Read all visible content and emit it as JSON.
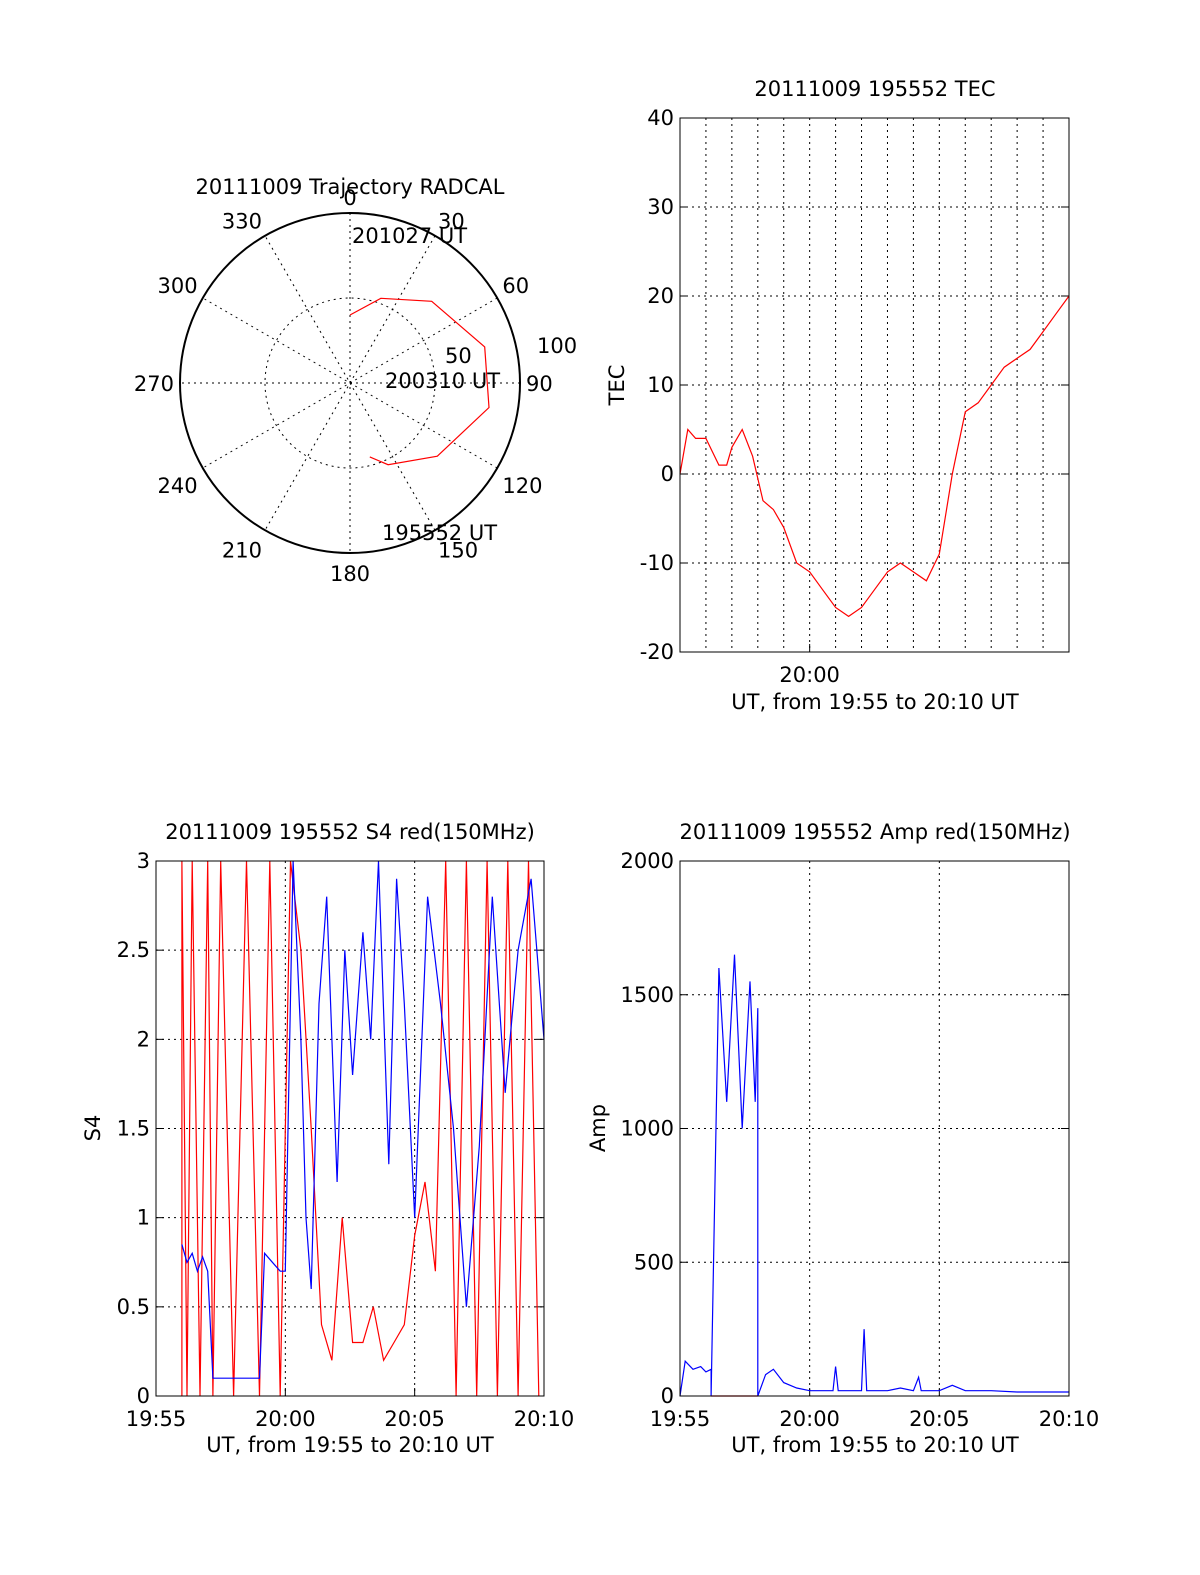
{
  "colors": {
    "red": "#ff0000",
    "blue": "#0000ff",
    "black": "#000000"
  },
  "chart_data": [
    {
      "type": "polar-trajectory",
      "title": "20111009 Trajectory RADCAL",
      "azimuth_labels": [
        "0",
        "30",
        "60",
        "90",
        "120",
        "150",
        "180",
        "210",
        "240",
        "270",
        "300",
        "330"
      ],
      "elevation_labels": [
        "50",
        "100"
      ],
      "annotations": [
        {
          "text": "201027 UT",
          "az": 0,
          "el": 40
        },
        {
          "text": "200310 UT",
          "az": 90,
          "el": 85
        },
        {
          "text": "195552 UT",
          "az": 165,
          "el": 45
        }
      ],
      "trajectory": [
        {
          "az": 0,
          "el": 40
        },
        {
          "az": 20,
          "el": 53
        },
        {
          "az": 45,
          "el": 68
        },
        {
          "az": 75,
          "el": 82
        },
        {
          "az": 100,
          "el": 83
        },
        {
          "az": 130,
          "el": 67
        },
        {
          "az": 155,
          "el": 53
        },
        {
          "az": 165,
          "el": 45
        }
      ]
    },
    {
      "type": "line",
      "title": "20111009 195552 TEC",
      "xlabel": "UT, from 19:55 to 20:10 UT",
      "ylabel": "TEC",
      "xlim": [
        0,
        15
      ],
      "ylim": [
        -20,
        40
      ],
      "yticks": [
        -20,
        -10,
        0,
        10,
        20,
        30,
        40
      ],
      "xticks": [
        {
          "value": 5,
          "label": "20:00"
        }
      ],
      "x_grid_minutes": [
        0,
        1,
        2,
        3,
        4,
        5,
        6,
        7,
        8,
        9,
        10,
        11,
        12,
        13,
        14,
        15
      ],
      "series": [
        {
          "color": "#ff0000",
          "x": [
            0.0,
            0.3,
            0.6,
            1.0,
            1.5,
            1.8,
            2.0,
            2.4,
            2.8,
            3.2,
            3.6,
            4.0,
            4.5,
            5.0,
            5.5,
            6.0,
            6.5,
            7.0,
            7.5,
            8.0,
            8.5,
            9.0,
            9.5,
            10.0,
            10.5,
            11.0,
            11.5,
            12.0,
            12.5,
            13.0,
            13.5,
            14.0,
            14.5,
            15.0
          ],
          "y": [
            0,
            5,
            4,
            4,
            1,
            1,
            3,
            5,
            2,
            -3,
            -4,
            -6,
            -10,
            -11,
            -13,
            -15,
            -16,
            -15,
            -13,
            -11,
            -10,
            -11,
            -12,
            -9,
            0,
            7,
            8,
            10,
            12,
            13,
            14,
            16,
            18,
            20
          ]
        }
      ]
    },
    {
      "type": "line",
      "title": "20111009 195552 S4 red(150MHz)",
      "xlabel": "UT, from 19:55 to 20:10 UT",
      "ylabel": "S4",
      "xlim": [
        0,
        15
      ],
      "ylim": [
        0,
        3
      ],
      "yticks": [
        0,
        0.5,
        1,
        1.5,
        2,
        2.5,
        3
      ],
      "xticks": [
        {
          "value": 0,
          "label": "19:55"
        },
        {
          "value": 5,
          "label": "20:00"
        },
        {
          "value": 10,
          "label": "20:05"
        },
        {
          "value": 15,
          "label": "20:10"
        }
      ],
      "series": [
        {
          "color": "#ff0000",
          "x": [
            1.0,
            1.0,
            1.2,
            1.4,
            1.7,
            2.0,
            2.2,
            2.5,
            3.0,
            3.5,
            4.0,
            4.4,
            4.8,
            5.2,
            5.6,
            6.0,
            6.4,
            6.8,
            7.2,
            7.6,
            8.0,
            8.4,
            8.8,
            9.2,
            9.6,
            10.0,
            10.4,
            10.8,
            11.2,
            11.6,
            12.0,
            12.4,
            12.8,
            13.2,
            13.6,
            14.0,
            14.4,
            14.8
          ],
          "y": [
            0,
            3,
            0,
            3,
            0,
            3,
            0,
            3,
            0,
            3,
            0,
            3,
            0,
            3,
            2.5,
            1.5,
            0.4,
            0.2,
            1.0,
            0.3,
            0.3,
            0.5,
            0.2,
            0.3,
            0.4,
            0.9,
            1.2,
            0.7,
            3,
            0,
            3,
            0,
            3,
            0,
            3,
            0,
            3,
            0
          ]
        },
        {
          "color": "#0000ff",
          "x": [
            1.0,
            1.2,
            1.4,
            1.6,
            1.8,
            2.0,
            2.2,
            2.2,
            4.0,
            4.2,
            4.5,
            4.8,
            5.0,
            5.3,
            5.6,
            5.8,
            6.0,
            6.3,
            6.6,
            7.0,
            7.3,
            7.6,
            8.0,
            8.3,
            8.6,
            9.0,
            9.3,
            9.6,
            10.0,
            10.5,
            11.0,
            11.5,
            12.0,
            12.5,
            13.0,
            13.5,
            14.0,
            14.5,
            15.0
          ],
          "y": [
            0.85,
            0.75,
            0.8,
            0.7,
            0.78,
            0.7,
            0.1,
            0.1,
            0.1,
            0.8,
            0.75,
            0.7,
            0.7,
            3.0,
            2.0,
            1.0,
            0.6,
            2.2,
            2.8,
            1.2,
            2.5,
            1.8,
            2.6,
            2.0,
            3.0,
            1.3,
            2.9,
            2.2,
            1.0,
            2.8,
            2.2,
            1.5,
            0.5,
            1.4,
            2.8,
            1.7,
            2.5,
            2.9,
            2.0
          ]
        }
      ]
    },
    {
      "type": "line",
      "title": "20111009 195552 Amp red(150MHz)",
      "xlabel": "UT, from 19:55 to 20:10 UT",
      "ylabel": "Amp",
      "xlim": [
        0,
        15
      ],
      "ylim": [
        0,
        2000
      ],
      "yticks": [
        0,
        500,
        1000,
        1500,
        2000
      ],
      "xticks": [
        {
          "value": 0,
          "label": "19:55"
        },
        {
          "value": 5,
          "label": "20:00"
        },
        {
          "value": 10,
          "label": "20:05"
        },
        {
          "value": 15,
          "label": "20:10"
        }
      ],
      "series": [
        {
          "color": "#0000ff",
          "x": [
            0.0,
            0.2,
            0.5,
            0.8,
            1.0,
            1.2,
            1.2,
            1.5,
            1.8,
            2.1,
            2.4,
            2.7,
            2.9,
            3.0,
            3.0,
            3.3,
            3.6,
            4.0,
            4.5,
            5.0,
            5.5,
            5.9,
            6.0,
            6.1,
            6.5,
            7.0,
            7.1,
            7.2,
            7.3,
            7.6,
            8.0,
            8.5,
            9.0,
            9.2,
            9.3,
            9.5,
            10.0,
            10.5,
            11.0,
            12.0,
            13.0,
            14.0,
            15.0
          ],
          "y": [
            0,
            130,
            100,
            110,
            90,
            100,
            0,
            1600,
            1100,
            1650,
            1000,
            1550,
            1100,
            1450,
            0,
            80,
            100,
            50,
            30,
            20,
            20,
            20,
            110,
            20,
            20,
            20,
            250,
            20,
            20,
            20,
            20,
            30,
            20,
            70,
            20,
            20,
            20,
            40,
            20,
            20,
            15,
            15,
            15
          ]
        },
        {
          "color": "#ff0000",
          "x": [
            1.2,
            3.0
          ],
          "y": [
            0,
            0
          ]
        }
      ]
    }
  ]
}
